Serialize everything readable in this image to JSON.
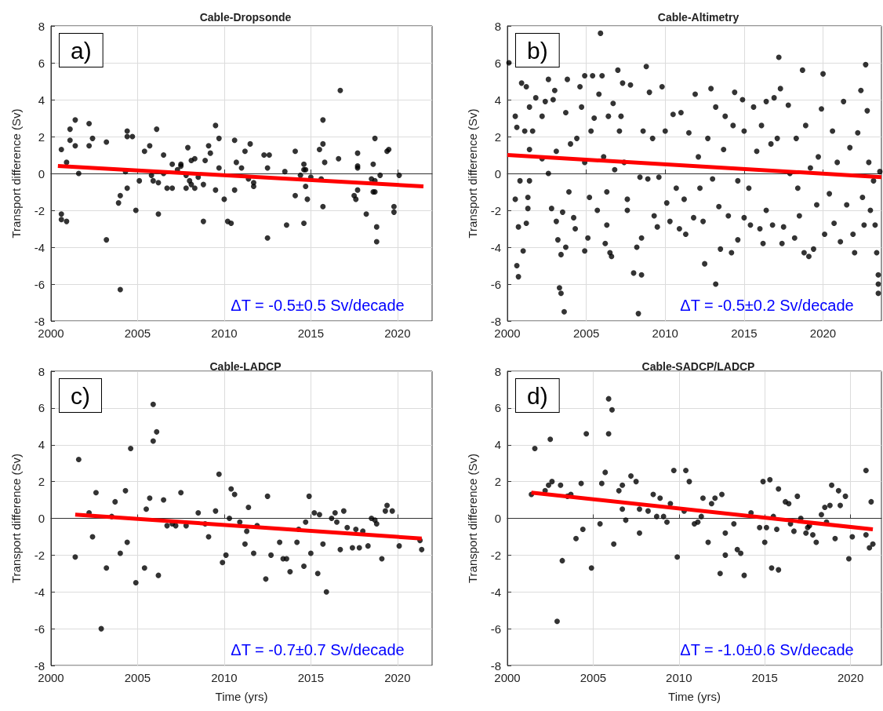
{
  "chart_data": [
    {
      "type": "scatter",
      "title": "Cable-Dropsonde",
      "ylabel": "Transport difference (Sv)",
      "annotations": [
        "a)",
        "ΔT = -0.5±0.5 Sv/decade"
      ],
      "xlim": [
        2000,
        2022
      ],
      "xticks": [
        2000,
        2005,
        2010,
        2015,
        2020
      ],
      "ylim": [
        -8,
        8
      ],
      "yticks": [
        -8,
        -6,
        -4,
        -2,
        0,
        2,
        4,
        6,
        8
      ],
      "grid": true,
      "series": [
        {
          "marker": "circle",
          "color": "#000000",
          "x": [
            2000.6,
            2000.6,
            2000.6,
            2000.9,
            2000.9,
            2001.1,
            2001.1,
            2001.4,
            2001.4,
            2001.6,
            2002.2,
            2002.2,
            2002.4,
            2003.2,
            2003.2,
            2004.0,
            2003.9,
            2004.0,
            2004.3,
            2004.4,
            2004.4,
            2004.4,
            2004.7,
            2004.9,
            2005.1,
            2005.4,
            2005.7,
            2005.8,
            2005.9,
            2006.1,
            2006.2,
            2006.2,
            2006.5,
            2006.5,
            2006.7,
            2007.0,
            2007.0,
            2007.3,
            2007.5,
            2007.5,
            2007.8,
            2007.8,
            2007.9,
            2008.0,
            2008.1,
            2008.1,
            2008.3,
            2008.3,
            2008.5,
            2008.8,
            2008.8,
            2008.9,
            2009.1,
            2009.2,
            2009.5,
            2009.5,
            2009.7,
            2009.7,
            2010.0,
            2010.2,
            2010.4,
            2010.6,
            2010.6,
            2010.7,
            2011.0,
            2011.2,
            2011.4,
            2011.5,
            2011.7,
            2011.7,
            2012.3,
            2012.5,
            2012.5,
            2012.6,
            2013.5,
            2013.6,
            2014.1,
            2014.1,
            2014.4,
            2014.6,
            2014.6,
            2014.6,
            2014.7,
            2014.7,
            2014.8,
            2015.0,
            2015.5,
            2015.6,
            2015.7,
            2015.7,
            2015.7,
            2015.8,
            2016.6,
            2016.7,
            2017.5,
            2017.6,
            2017.7,
            2017.7,
            2017.7,
            2017.7,
            2018.2,
            2018.5,
            2018.6,
            2018.6,
            2018.7,
            2018.7,
            2018.7,
            2018.8,
            2018.8,
            2019.0,
            2019.4,
            2019.5,
            2019.8,
            2019.8,
            2020.1
          ],
          "values": [
            1.3,
            -2.2,
            -2.5,
            -2.6,
            0.6,
            2.4,
            1.8,
            2.9,
            1.5,
            0,
            2.7,
            1.5,
            1.9,
            1.7,
            -3.6,
            -6.3,
            -1.6,
            -1.2,
            0.1,
            -0.8,
            2.3,
            2.0,
            2.0,
            -2.0,
            -0.4,
            1.2,
            1.5,
            -0.1,
            -0.4,
            2.4,
            -2.2,
            -0.5,
            0,
            1.0,
            -0.8,
            0.5,
            -0.8,
            0.2,
            0.4,
            0.5,
            -0.1,
            -0.8,
            1.4,
            -0.4,
            0.7,
            -0.6,
            0.8,
            -0.8,
            -0.2,
            -2.6,
            -0.6,
            0.7,
            1.5,
            1.1,
            2.6,
            -0.9,
            1.9,
            0.3,
            -1.4,
            -2.6,
            -2.7,
            -0.9,
            1.8,
            0.6,
            0.3,
            1.2,
            -0.3,
            1.6,
            -0.7,
            -0.5,
            1.0,
            -3.5,
            0.3,
            1.0,
            0.1,
            -2.8,
            -1.2,
            1.2,
            -0.1,
            0.5,
            0.2,
            -2.7,
            0.2,
            -0.7,
            -1.4,
            -0.2,
            1.3,
            -0.3,
            1.6,
            2.9,
            -1.8,
            0.6,
            0.8,
            4.5,
            -1.2,
            -1.4,
            0.4,
            1.1,
            0.3,
            -0.9,
            -2.2,
            -0.3,
            0.5,
            -1.0,
            1.9,
            -1.0,
            -0.4,
            -2.9,
            -3.7,
            -0.1,
            1.2,
            1.3,
            -1.8,
            -2.1,
            -0.1
          ]
        },
        {
          "type": "line",
          "marker": "none",
          "color": "#ff0000",
          "x": [
            2000.4,
            2021.5
          ],
          "values": [
            0.4,
            -0.7
          ]
        }
      ]
    },
    {
      "type": "scatter",
      "title": "Cable-Altimetry",
      "ylabel": "Transport difference (Sv)",
      "annotations": [
        "b)",
        "ΔT = -0.5±0.2 Sv/decade"
      ],
      "xlim": [
        2000,
        2023.7
      ],
      "xticks": [
        2000,
        2005,
        2010,
        2015,
        2020
      ],
      "ylim": [
        -8,
        8
      ],
      "yticks": [
        -8,
        -6,
        -4,
        -2,
        0,
        2,
        4,
        6,
        8
      ],
      "grid": true,
      "series": [
        {
          "marker": "circle",
          "color": "#000000",
          "x": [
            2000.1,
            2000.5,
            2000.5,
            2000.6,
            2000.6,
            2000.7,
            2000.7,
            2000.8,
            2000.9,
            2001.0,
            2001.1,
            2001.2,
            2001.2,
            2001.3,
            2001.3,
            2001.4,
            2001.4,
            2001.4,
            2001.6,
            2001.8,
            2002.2,
            2002.2,
            2002.4,
            2002.6,
            2002.6,
            2002.8,
            2002.9,
            2003.0,
            2003.1,
            2003.1,
            2003.2,
            2003.3,
            2003.4,
            2003.4,
            2003.5,
            2003.6,
            2003.7,
            2003.7,
            2003.8,
            2003.9,
            2004.0,
            2004.2,
            2004.3,
            2004.4,
            2004.6,
            2004.7,
            2004.9,
            2004.9,
            2004.9,
            2005.1,
            2005.2,
            2005.3,
            2005.4,
            2005.5,
            2005.7,
            2005.8,
            2005.9,
            2006.0,
            2006.1,
            2006.2,
            2006.3,
            2006.3,
            2006.4,
            2006.5,
            2006.6,
            2006.7,
            2006.8,
            2007.0,
            2007.1,
            2007.2,
            2007.3,
            2007.4,
            2007.6,
            2007.6,
            2007.8,
            2008.0,
            2008.2,
            2008.3,
            2008.4,
            2008.5,
            2008.5,
            2008.6,
            2008.8,
            2008.9,
            2009.0,
            2009.2,
            2009.3,
            2009.5,
            2009.6,
            2009.8,
            2010.0,
            2010.1,
            2010.3,
            2010.5,
            2010.7,
            2010.9,
            2011.0,
            2011.2,
            2011.3,
            2011.5,
            2011.8,
            2011.9,
            2012.1,
            2012.2,
            2012.4,
            2012.5,
            2012.7,
            2012.9,
            2013.0,
            2013.2,
            2013.2,
            2013.4,
            2013.5,
            2013.7,
            2013.8,
            2014.0,
            2014.2,
            2014.3,
            2014.4,
            2014.6,
            2014.6,
            2014.9,
            2015.0,
            2015.0,
            2015.3,
            2015.4,
            2015.6,
            2015.8,
            2016.0,
            2016.1,
            2016.2,
            2016.4,
            2016.4,
            2016.7,
            2016.8,
            2016.9,
            2017.1,
            2017.2,
            2017.3,
            2017.4,
            2017.5,
            2017.8,
            2017.9,
            2018.2,
            2018.3,
            2018.4,
            2018.5,
            2018.7,
            2018.8,
            2018.9,
            2019.1,
            2019.2,
            2019.4,
            2019.6,
            2019.7,
            2019.9,
            2020.0,
            2020.1,
            2020.4,
            2020.6,
            2020.7,
            2020.9,
            2021.1,
            2021.3,
            2021.5,
            2021.7,
            2021.9,
            2022.0,
            2022.2,
            2022.4,
            2022.5,
            2022.6,
            2022.7,
            2022.8,
            2022.9,
            2023.0,
            2023.2,
            2023.3,
            2023.4,
            2023.5,
            2023.5,
            2023.5,
            2023.6
          ],
          "values": [
            6.0,
            3.1,
            -1.4,
            -5.0,
            2.5,
            -5.6,
            -2.9,
            -0.4,
            4.9,
            -4.2,
            2.3,
            -2.7,
            4.7,
            -1.3,
            -1.9,
            3.6,
            -0.4,
            1.3,
            2.3,
            4.1,
            0.8,
            3.1,
            3.9,
            5.1,
            0,
            -1.9,
            4.0,
            4.5,
            -2.6,
            1.2,
            -3.6,
            -6.2,
            -6.5,
            -4.4,
            -2.1,
            -7.5,
            -4.0,
            3.3,
            5.1,
            -1.0,
            1.6,
            -2.4,
            -3.0,
            1.9,
            4.7,
            3.6,
            0.6,
            5.3,
            -4.2,
            -3.5,
            -1.3,
            2.3,
            5.3,
            3.0,
            -2.0,
            4.3,
            7.6,
            5.3,
            0.9,
            -3.8,
            -2.8,
            -1.0,
            3.1,
            -4.3,
            -4.5,
            3.8,
            0.2,
            5.6,
            2.3,
            3.1,
            4.9,
            0.6,
            -1.4,
            -2.0,
            4.8,
            -5.4,
            -4.0,
            -7.6,
            -0.2,
            -3.5,
            -5.5,
            2.3,
            5.8,
            -0.3,
            4.4,
            1.9,
            -2.3,
            -2.9,
            -0.2,
            4.7,
            2.3,
            -1.6,
            -2.6,
            3.2,
            -0.8,
            -3.0,
            3.3,
            -1.4,
            -3.3,
            2.2,
            -2.4,
            4.3,
            0.9,
            -0.8,
            -2.6,
            -4.9,
            1.9,
            4.6,
            -0.3,
            -6.0,
            3.6,
            -1.8,
            -4.1,
            1.3,
            3.1,
            -2.3,
            -4.3,
            2.6,
            4.4,
            -0.4,
            -3.6,
            4.0,
            -2.4,
            2.3,
            -0.8,
            -2.8,
            3.6,
            1.2,
            -3.0,
            2.6,
            -3.8,
            3.9,
            -2.0,
            1.6,
            -2.8,
            4.1,
            1.9,
            6.3,
            4.6,
            -3.8,
            -2.9,
            3.7,
            0,
            -3.5,
            1.9,
            -0.8,
            -2.3,
            5.6,
            -4.3,
            2.6,
            -4.5,
            0.3,
            -4.1,
            -1.7,
            0.9,
            3.5,
            5.4,
            -3.3,
            -1.1,
            2.3,
            -2.7,
            0.6,
            -3.7,
            3.9,
            -1.7,
            1.4,
            -3.3,
            -4.3,
            2.2,
            4.5,
            -1.3,
            -2.8,
            5.9,
            3.4,
            0.6,
            -2.0,
            -0.4,
            -2.8,
            -4.3,
            -5.5,
            -6.5,
            -6.0,
            0.1
          ]
        },
        {
          "type": "line",
          "marker": "none",
          "color": "#ff0000",
          "x": [
            2000,
            2023.7
          ],
          "values": [
            1.0,
            -0.2
          ]
        }
      ]
    },
    {
      "type": "scatter",
      "title": "Cable-LADCP",
      "xlabel": "Time (yrs)",
      "ylabel": "Transport difference (Sv)",
      "annotations": [
        "c)",
        "ΔT = -0.7±0.7 Sv/decade"
      ],
      "xlim": [
        2000,
        2022
      ],
      "xticks": [
        2000,
        2005,
        2010,
        2015,
        2020
      ],
      "ylim": [
        -8,
        8
      ],
      "yticks": [
        -8,
        -6,
        -4,
        -2,
        0,
        2,
        4,
        6,
        8
      ],
      "grid": true,
      "series": [
        {
          "marker": "circle",
          "color": "#000000",
          "x": [
            2001.4,
            2001.6,
            2002.2,
            2002.4,
            2002.6,
            2002.9,
            2003.2,
            2003.5,
            2003.7,
            2004.0,
            2004.3,
            2004.4,
            2004.6,
            2004.9,
            2005.4,
            2005.5,
            2005.7,
            2005.9,
            2005.9,
            2006.1,
            2006.2,
            2006.5,
            2006.7,
            2007.0,
            2007.2,
            2007.5,
            2007.8,
            2008.5,
            2008.9,
            2009.1,
            2009.5,
            2009.7,
            2009.9,
            2010.1,
            2010.3,
            2010.4,
            2010.6,
            2010.9,
            2011.2,
            2011.3,
            2011.4,
            2011.7,
            2011.9,
            2012.4,
            2012.5,
            2012.7,
            2013.2,
            2013.4,
            2013.6,
            2013.8,
            2014.2,
            2014.3,
            2014.6,
            2014.7,
            2014.9,
            2015.0,
            2015.2,
            2015.4,
            2015.5,
            2015.7,
            2015.9,
            2016.2,
            2016.4,
            2016.5,
            2016.7,
            2016.9,
            2017.1,
            2017.4,
            2017.6,
            2017.8,
            2018.0,
            2018.3,
            2018.5,
            2018.7,
            2018.8,
            2019.1,
            2019.3,
            2019.4,
            2019.7,
            2020.1,
            2021.3,
            2021.4
          ],
          "values": [
            -2.1,
            3.2,
            0.3,
            -1.0,
            1.4,
            -6.0,
            -2.7,
            0.1,
            0.9,
            -1.9,
            1.5,
            -1.3,
            3.8,
            -3.5,
            -2.7,
            0.5,
            1.1,
            6.2,
            4.2,
            4.7,
            -3.1,
            1.0,
            -0.4,
            -0.3,
            -0.4,
            1.4,
            -0.4,
            0.3,
            -0.3,
            -1.0,
            0.4,
            2.4,
            -2.4,
            -2.0,
            0,
            1.6,
            1.3,
            -0.2,
            -1.4,
            -0.7,
            0.6,
            -1.9,
            -0.4,
            -3.3,
            1.2,
            -2.0,
            -1.3,
            -2.2,
            -2.2,
            -2.9,
            -1.3,
            -0.6,
            -2.6,
            -0.2,
            1.2,
            -1.9,
            0.3,
            -3.0,
            0.2,
            -1.4,
            -4.0,
            0,
            0.3,
            -0.2,
            -1.7,
            0.4,
            -0.5,
            -1.6,
            -0.6,
            -1.6,
            -0.7,
            -1.5,
            0,
            -0.1,
            -0.3,
            -2.2,
            0.4,
            0.7,
            0.4,
            -1.5,
            -1.2,
            -1.7
          ]
        },
        {
          "type": "line",
          "marker": "none",
          "color": "#ff0000",
          "x": [
            2001.4,
            2021.4
          ],
          "values": [
            0.2,
            -1.1
          ]
        }
      ]
    },
    {
      "type": "scatter",
      "title": "Cable-SADCP/LADCP",
      "xlabel": "Time (yrs)",
      "ylabel": "Transport difference (Sv)",
      "annotations": [
        "d)",
        "ΔT = -1.0±0.6 Sv/decade"
      ],
      "xlim": [
        2000,
        2021.8
      ],
      "xticks": [
        2000,
        2005,
        2010,
        2015,
        2020
      ],
      "ylim": [
        -8,
        8
      ],
      "yticks": [
        -8,
        -6,
        -4,
        -2,
        0,
        2,
        4,
        6,
        8
      ],
      "grid": true,
      "series": [
        {
          "marker": "circle",
          "color": "#000000",
          "x": [
            2001.4,
            2001.6,
            2002.2,
            2002.4,
            2002.5,
            2002.6,
            2002.9,
            2003.1,
            2003.2,
            2003.5,
            2003.7,
            2004.0,
            2004.3,
            2004.4,
            2004.6,
            2004.9,
            2005.4,
            2005.5,
            2005.7,
            2005.9,
            2005.9,
            2006.1,
            2006.2,
            2006.5,
            2006.7,
            2006.7,
            2006.9,
            2007.2,
            2007.5,
            2007.7,
            2007.7,
            2008.2,
            2008.5,
            2008.7,
            2008.9,
            2009.1,
            2009.3,
            2009.5,
            2009.7,
            2009.9,
            2010.3,
            2010.4,
            2010.6,
            2010.9,
            2011.1,
            2011.3,
            2011.4,
            2011.7,
            2011.9,
            2012.1,
            2012.4,
            2012.5,
            2012.7,
            2012.7,
            2013.2,
            2013.4,
            2013.6,
            2013.8,
            2014.2,
            2014.7,
            2014.9,
            2015.0,
            2015.1,
            2015.3,
            2015.4,
            2015.5,
            2015.7,
            2015.8,
            2015.8,
            2016.2,
            2016.4,
            2016.5,
            2016.7,
            2016.9,
            2017.1,
            2017.4,
            2017.5,
            2017.6,
            2017.8,
            2018.0,
            2018.3,
            2018.5,
            2018.6,
            2018.8,
            2018.9,
            2019.1,
            2019.3,
            2019.4,
            2019.7,
            2019.9,
            2020.1,
            2020.9,
            2020.9,
            2021.1,
            2021.2,
            2021.3
          ],
          "values": [
            1.3,
            3.8,
            1.5,
            1.8,
            4.3,
            2.0,
            -5.6,
            1.8,
            -2.3,
            1.2,
            1.3,
            -1.1,
            1.9,
            -0.6,
            4.6,
            -2.7,
            -0.3,
            1.9,
            2.5,
            6.5,
            4.6,
            5.9,
            -1.4,
            1.5,
            0.5,
            1.8,
            -0.1,
            2.3,
            2.0,
            0.5,
            -0.8,
            0.4,
            1.3,
            0.1,
            1.1,
            0.1,
            -0.2,
            0.8,
            2.6,
            -2.1,
            0.4,
            2.6,
            2.0,
            -0.3,
            -0.2,
            0.1,
            1.1,
            -1.3,
            0.8,
            1.1,
            -3.0,
            1.3,
            -2.0,
            -0.8,
            -0.3,
            -1.7,
            -1.9,
            -3.1,
            0.3,
            -0.5,
            2.0,
            -1.3,
            -0.5,
            2.1,
            -2.7,
            0.1,
            -0.6,
            1.6,
            -2.8,
            0.9,
            0.8,
            -0.3,
            -0.7,
            1.2,
            0,
            -0.8,
            -0.5,
            -0.4,
            -0.9,
            -1.3,
            0.2,
            0.6,
            -0.2,
            0.7,
            1.8,
            -1.1,
            1.5,
            0.7,
            1.2,
            -2.2,
            -1.0,
            2.6,
            -0.9,
            -1.6,
            0.9,
            -1.4
          ]
        },
        {
          "type": "line",
          "marker": "none",
          "color": "#ff0000",
          "x": [
            2001.4,
            2021.3
          ],
          "values": [
            1.4,
            -0.6
          ]
        }
      ]
    }
  ]
}
